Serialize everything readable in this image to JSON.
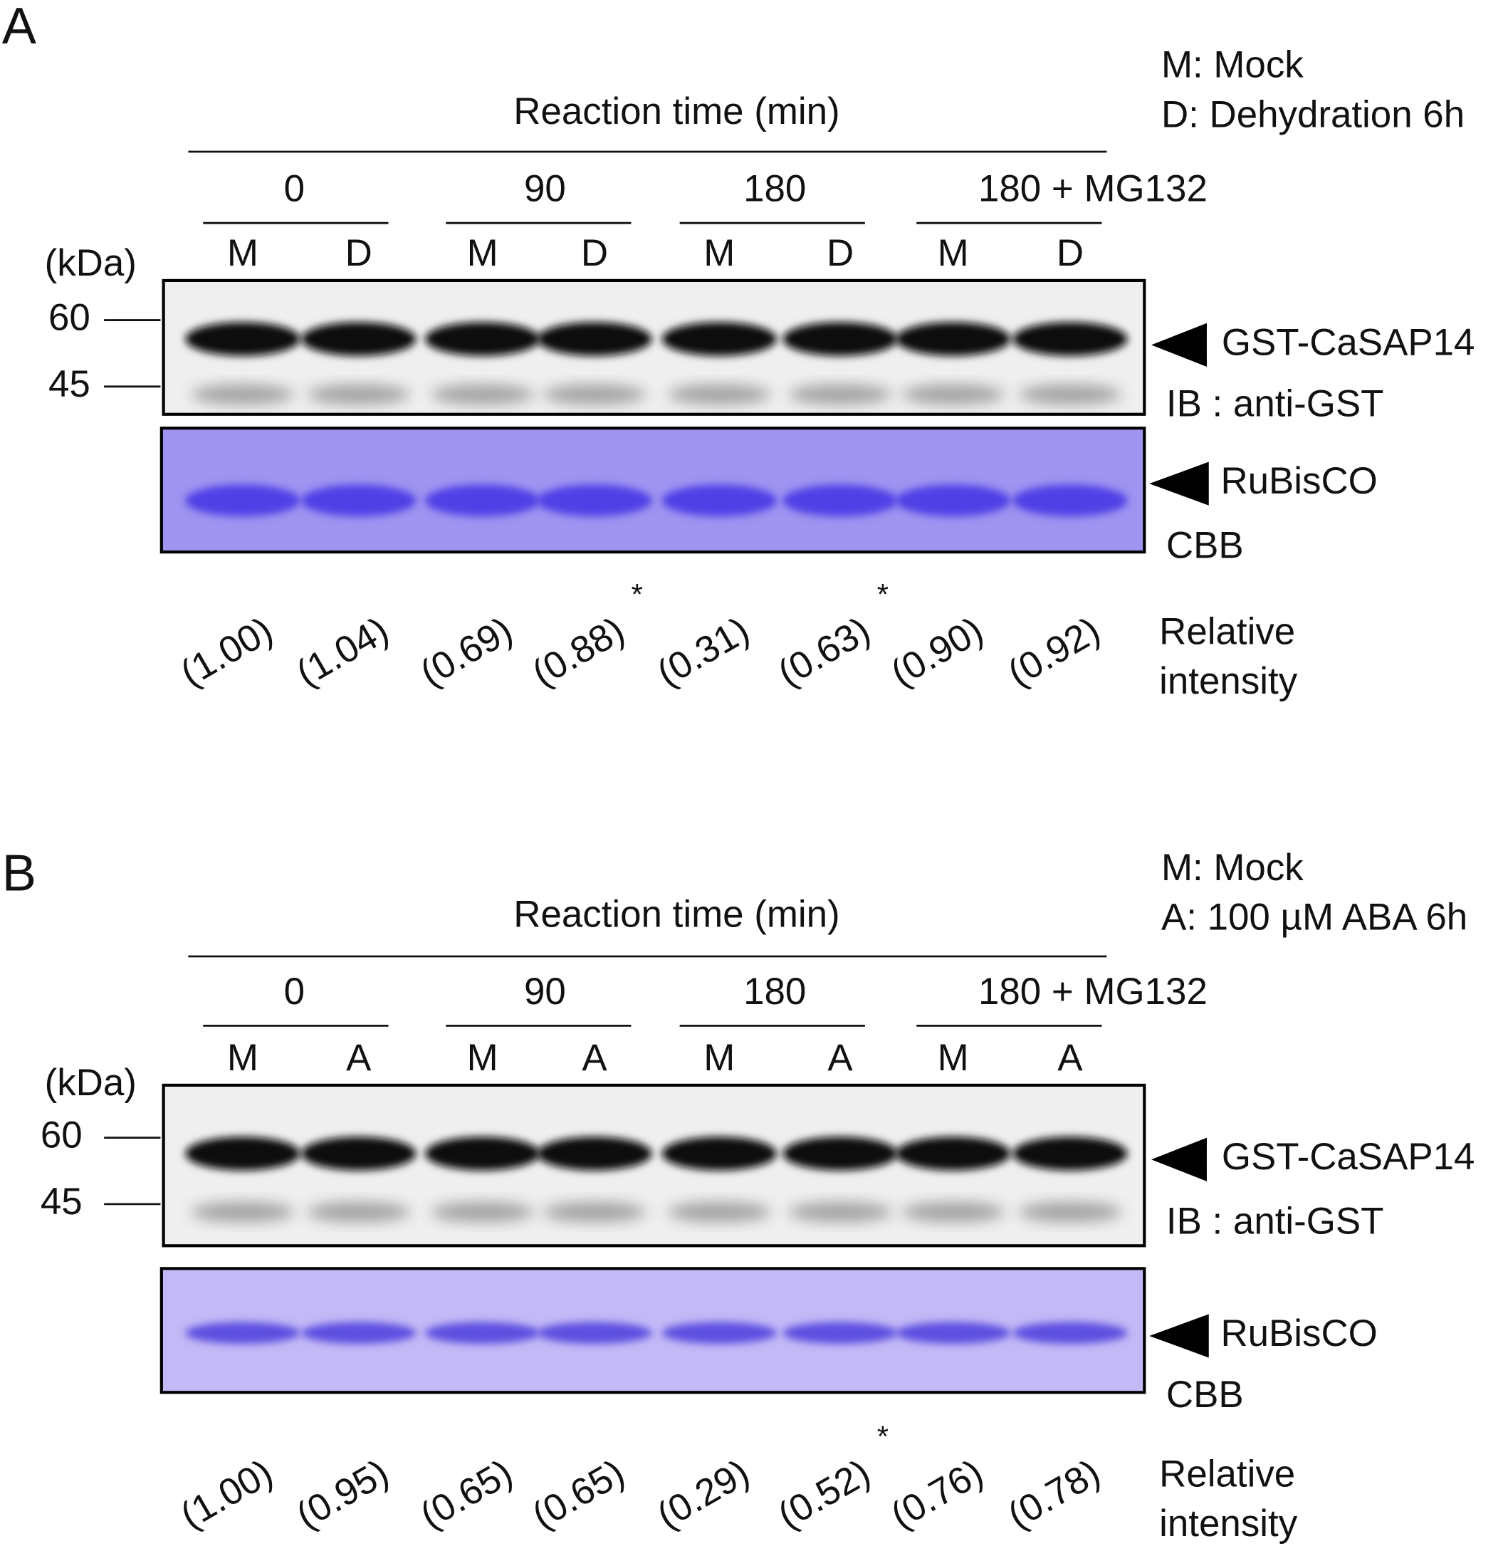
{
  "panels": [
    {
      "label": "A",
      "legend": [
        "M: Mock",
        "D: Dehydration 6h"
      ],
      "header": "Reaction time (min)",
      "kda_unit": "(kDa)",
      "markers": [
        60,
        45
      ],
      "groups": [
        {
          "label": "0",
          "lanes": [
            "M",
            "D"
          ]
        },
        {
          "label": "90",
          "lanes": [
            "M",
            "D"
          ]
        },
        {
          "label": "180",
          "lanes": [
            "M",
            "D"
          ]
        },
        {
          "label": "180 + MG132",
          "lanes": [
            "M",
            "D"
          ]
        }
      ],
      "blot_labels": {
        "target": "GST-CaSAP14",
        "antibody": "IB : anti-GST",
        "loading": "RuBisCO",
        "stain": "CBB"
      },
      "intensity_title": [
        "Relative",
        "intensity"
      ],
      "intensities": [
        {
          "label": "(1.00)"
        },
        {
          "label": "(1.04)"
        },
        {
          "label": "(0.69)"
        },
        {
          "label": "(0.88)",
          "mark": "*"
        },
        {
          "label": "(0.31)"
        },
        {
          "label": "(0.63)",
          "mark": "*"
        },
        {
          "label": "(0.90)"
        },
        {
          "label": "(0.92)"
        }
      ]
    },
    {
      "label": "B",
      "legend": [
        "M: Mock",
        "A: 100 µM ABA 6h"
      ],
      "header": "Reaction time (min)",
      "kda_unit": "(kDa)",
      "markers": [
        60,
        45
      ],
      "groups": [
        {
          "label": "0",
          "lanes": [
            "M",
            "A"
          ]
        },
        {
          "label": "90",
          "lanes": [
            "M",
            "A"
          ]
        },
        {
          "label": "180",
          "lanes": [
            "M",
            "A"
          ]
        },
        {
          "label": "180 + MG132",
          "lanes": [
            "M",
            "A"
          ]
        }
      ],
      "blot_labels": {
        "target": "GST-CaSAP14",
        "antibody": "IB : anti-GST",
        "loading": "RuBisCO",
        "stain": "CBB"
      },
      "intensity_title": [
        "Relative",
        "intensity"
      ],
      "intensities": [
        {
          "label": "(1.00)"
        },
        {
          "label": "(0.95)"
        },
        {
          "label": "(0.65)"
        },
        {
          "label": "(0.65)"
        },
        {
          "label": "(0.29)"
        },
        {
          "label": "(0.52)",
          "mark": "*"
        },
        {
          "label": "(0.76)"
        },
        {
          "label": "(0.78)"
        }
      ]
    }
  ]
}
